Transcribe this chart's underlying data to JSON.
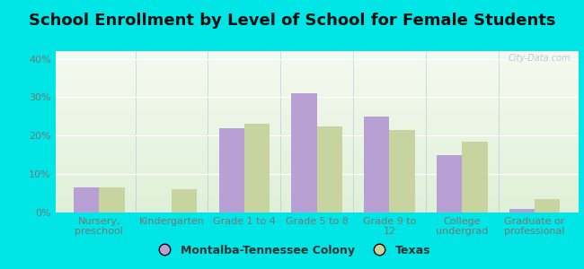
{
  "title": "School Enrollment by Level of School for Female Students",
  "categories": [
    "Nursery,\npreschool",
    "Kindergarten",
    "Grade 1 to 4",
    "Grade 5 to 8",
    "Grade 9 to\n12",
    "College\nundergrad",
    "Graduate or\nprofessional"
  ],
  "montalba": [
    6.5,
    0,
    22,
    31,
    25,
    15,
    1
  ],
  "texas": [
    6.5,
    6,
    23,
    22.5,
    21.5,
    18.5,
    3.5
  ],
  "montalba_color": "#b89fd4",
  "texas_color": "#c8d4a0",
  "bar_width": 0.35,
  "ylim_max": 42,
  "yticks": [
    0,
    10,
    20,
    30,
    40
  ],
  "ytick_labels": [
    "0%",
    "10%",
    "20%",
    "30%",
    "40%"
  ],
  "bg_color": "#00e5e5",
  "plot_bg_gradient_top": "#f5faf0",
  "plot_bg_gradient_bottom": "#dff0d8",
  "legend_labels": [
    "Montalba-Tennessee Colony",
    "Texas"
  ],
  "title_fontsize": 13,
  "tick_fontsize": 8,
  "legend_fontsize": 9,
  "watermark": "City-Data.com",
  "tick_color": "#777777",
  "title_color": "#111111",
  "separator_color": "#88aacc",
  "gridline_color": "#ffffff"
}
